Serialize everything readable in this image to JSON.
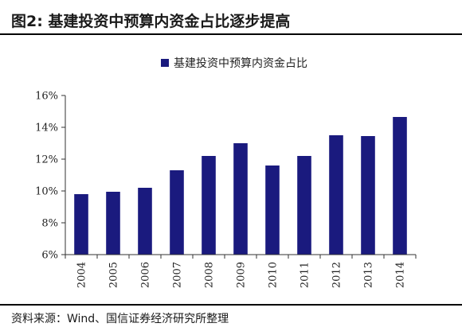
{
  "figure": {
    "title": "图2:  基建投资中预算内资金占比逐步提高",
    "source": "资料来源：Wind、国信证券经济研究所整理"
  },
  "chart_data": {
    "type": "bar",
    "categories": [
      "2004",
      "2005",
      "2006",
      "2007",
      "2008",
      "2009",
      "2010",
      "2011",
      "2012",
      "2013",
      "2014"
    ],
    "series": [
      {
        "name": "基建投资中预算内资金占比",
        "values": [
          9.8,
          9.95,
          10.2,
          11.3,
          12.2,
          13.0,
          11.6,
          12.2,
          13.5,
          13.45,
          14.65
        ],
        "color": "#1a1a7e"
      }
    ],
    "title": "",
    "xlabel": "",
    "ylabel": "",
    "ylim": [
      6,
      16
    ],
    "yticks": [
      6,
      8,
      10,
      12,
      14,
      16
    ],
    "ytick_labels": [
      "6%",
      "8%",
      "10%",
      "12%",
      "14%",
      "16%"
    ],
    "legend": "top-center",
    "grid": false
  }
}
